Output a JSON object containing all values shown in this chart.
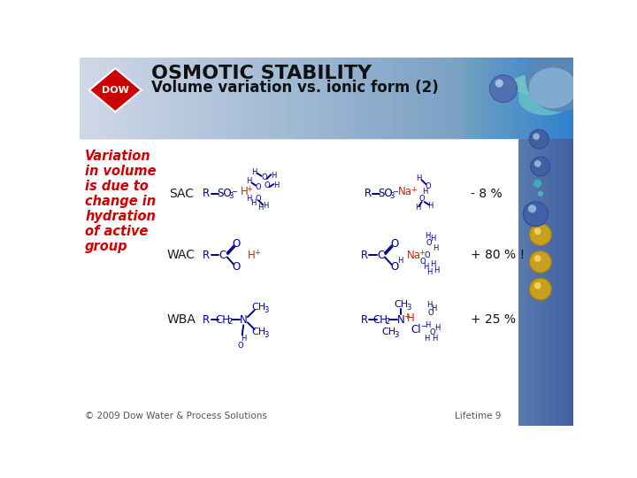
{
  "title_line1": "OSMOTIC STABILITY",
  "title_line2": "Volume variation vs. ionic form (2)",
  "bg_color": "#ffffff",
  "left_text_color": "#cc0000",
  "left_text_lines": [
    "Variation",
    "in volume",
    "is due to",
    "change in",
    "hydration",
    "of active",
    "group"
  ],
  "label_sac": "SAC",
  "label_wac": "WAC",
  "label_wba": "WBA",
  "result_sac": "- 8 %",
  "result_wac": "+ 80 % !",
  "result_wba": "+ 25 %",
  "copyright": "© 2009 Dow Water & Process Solutions",
  "page": "Lifetime 9",
  "dow_red": "#cc0000",
  "blue_dark": "#00008b",
  "red_ion": "#cc2200",
  "header_grad_left": "#c8d8e8",
  "header_grad_right": "#8ab0d0",
  "right_panel_color": "#7090b8",
  "teal_color": "#40a0b0",
  "gold_color": "#c8a020"
}
